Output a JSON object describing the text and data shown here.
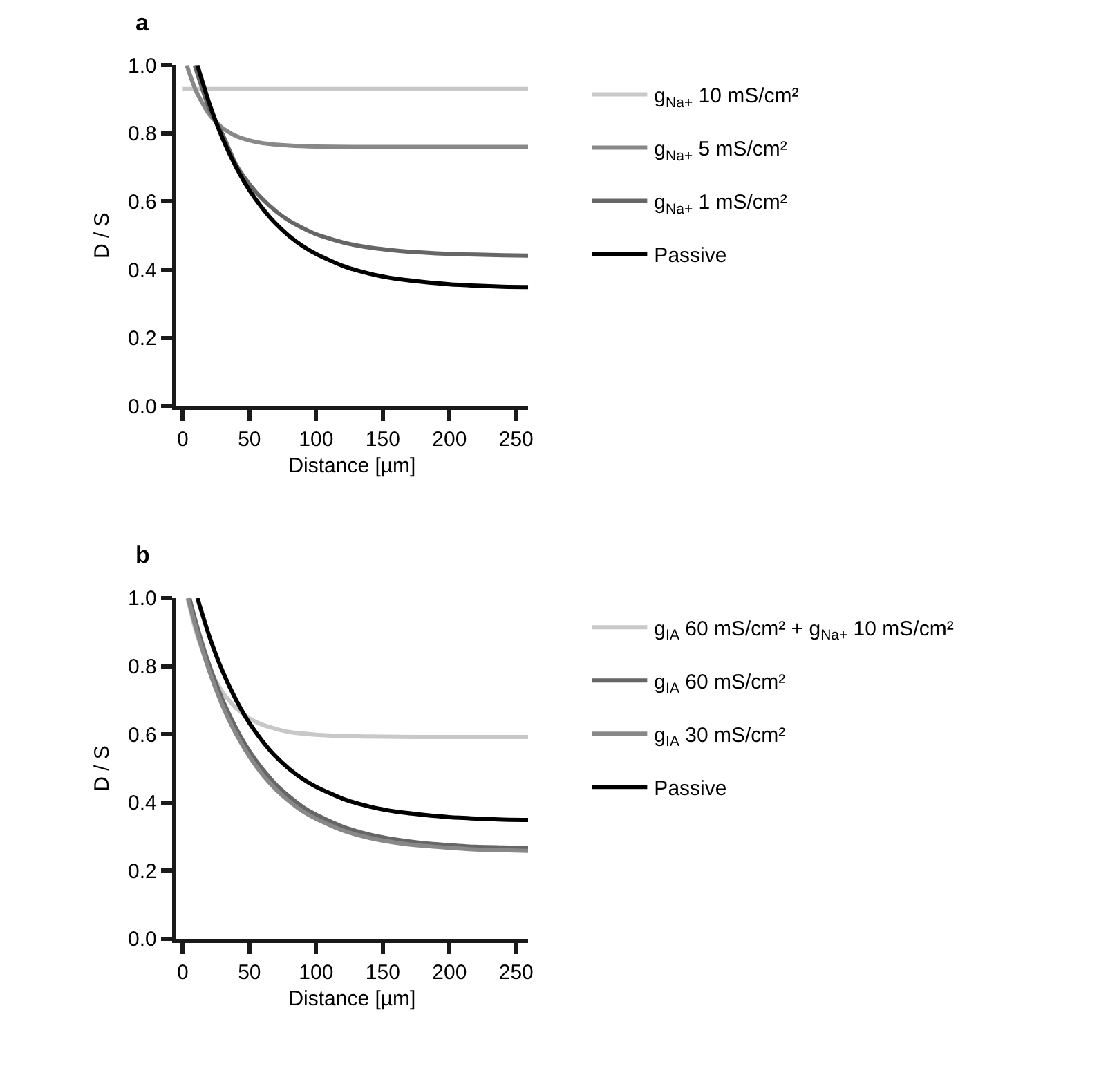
{
  "chart_data": [
    {
      "type": "line",
      "title": "a",
      "xlabel": "Distance [µm]",
      "ylabel": "D / S",
      "xlim": [
        -5,
        259
      ],
      "ylim": [
        0,
        1.0
      ],
      "xticks": [
        0,
        50,
        100,
        150,
        200,
        250
      ],
      "yticks": [
        {
          "value": 0,
          "label": "0.0"
        },
        {
          "value": 0.2,
          "label": "0.2"
        },
        {
          "value": 0.4,
          "label": "0.4"
        },
        {
          "value": 0.6,
          "label": "0.6"
        },
        {
          "value": 0.8,
          "label": "0.8"
        },
        {
          "value": 1.0,
          "label": "1.0"
        }
      ],
      "legend": "right",
      "series": [
        {
          "name": "g$_{Na+}$ 10 mS/cm²",
          "color": "#c8c8c8",
          "x": [
            0,
            259
          ],
          "values": [
            0.93,
            0.93
          ]
        },
        {
          "name": "g$_{Na+}$ 5 mS/cm²",
          "color": "#888888",
          "x": [
            3,
            10,
            20,
            30,
            40,
            50,
            60,
            80,
            100,
            150,
            200,
            259
          ],
          "values": [
            1.0,
            0.924,
            0.855,
            0.815,
            0.792,
            0.779,
            0.771,
            0.764,
            0.761,
            0.76,
            0.76,
            0.76
          ]
        },
        {
          "name": "g$_{Na+}$ 1 mS/cm²",
          "color": "#666666",
          "x": [
            9,
            20,
            30,
            40,
            50,
            60,
            70,
            80,
            90,
            100,
            120,
            140,
            160,
            180,
            200,
            220,
            240,
            259
          ],
          "values": [
            1.0,
            0.871,
            0.796,
            0.708,
            0.651,
            0.606,
            0.571,
            0.543,
            0.522,
            0.504,
            0.48,
            0.465,
            0.456,
            0.45,
            0.446,
            0.444,
            0.442,
            0.441
          ]
        },
        {
          "name": "Passive",
          "color": "#000000",
          "x": [
            11,
            20,
            30,
            40,
            50,
            60,
            70,
            80,
            90,
            100,
            120,
            140,
            160,
            180,
            200,
            220,
            240,
            259
          ],
          "values": [
            1.0,
            0.887,
            0.784,
            0.701,
            0.633,
            0.579,
            0.534,
            0.498,
            0.469,
            0.446,
            0.411,
            0.388,
            0.373,
            0.364,
            0.357,
            0.353,
            0.35,
            0.349
          ]
        }
      ]
    },
    {
      "type": "line",
      "title": "b",
      "xlabel": "Distance [µm]",
      "ylabel": "D / S",
      "xlim": [
        -5,
        259
      ],
      "ylim": [
        0,
        1.0
      ],
      "xticks": [
        0,
        50,
        100,
        150,
        200,
        250
      ],
      "yticks": [
        {
          "value": 0,
          "label": "0.0"
        },
        {
          "value": 0.2,
          "label": "0.2"
        },
        {
          "value": 0.4,
          "label": "0.4"
        },
        {
          "value": 0.6,
          "label": "0.6"
        },
        {
          "value": 0.8,
          "label": "0.8"
        },
        {
          "value": 1.0,
          "label": "1.0"
        }
      ],
      "legend": "right",
      "series": [
        {
          "name": "g$_{IA}$ 60 mS/cm² + g$_{Na+}$ 10 mS/cm²",
          "color": "#c8c8c8",
          "x": [
            3.5,
            10,
            20,
            30,
            40,
            50,
            60,
            70,
            80,
            100,
            120,
            150,
            200,
            259
          ],
          "values": [
            1.0,
            0.901,
            0.793,
            0.723,
            0.677,
            0.647,
            0.628,
            0.616,
            0.607,
            0.599,
            0.595,
            0.593,
            0.592,
            0.592
          ]
        },
        {
          "name": "g$_{IA}$ 60 mS/cm²",
          "color": "#666666",
          "x": [
            5,
            10,
            20,
            30,
            40,
            50,
            60,
            70,
            80,
            90,
            100,
            120,
            140,
            160,
            180,
            200,
            220,
            240,
            259
          ],
          "values": [
            1.0,
            0.927,
            0.802,
            0.7,
            0.618,
            0.551,
            0.497,
            0.452,
            0.417,
            0.387,
            0.364,
            0.329,
            0.306,
            0.291,
            0.281,
            0.275,
            0.27,
            0.268,
            0.266
          ]
        },
        {
          "name": "g$_{IA}$ 30 mS/cm²",
          "color": "#888888",
          "x": [
            4,
            10,
            20,
            30,
            40,
            50,
            60,
            70,
            80,
            90,
            100,
            120,
            140,
            160,
            180,
            200,
            220,
            240,
            259
          ],
          "values": [
            1.0,
            0.911,
            0.785,
            0.683,
            0.601,
            0.535,
            0.481,
            0.438,
            0.403,
            0.374,
            0.352,
            0.318,
            0.296,
            0.282,
            0.273,
            0.267,
            0.262,
            0.26,
            0.258
          ]
        },
        {
          "name": "Passive",
          "color": "#000000",
          "x": [
            11,
            20,
            30,
            40,
            50,
            60,
            70,
            80,
            90,
            100,
            120,
            140,
            160,
            180,
            200,
            220,
            240,
            259
          ],
          "values": [
            1.0,
            0.887,
            0.784,
            0.701,
            0.633,
            0.579,
            0.534,
            0.498,
            0.469,
            0.446,
            0.411,
            0.388,
            0.373,
            0.364,
            0.357,
            0.353,
            0.35,
            0.349
          ]
        }
      ]
    }
  ]
}
